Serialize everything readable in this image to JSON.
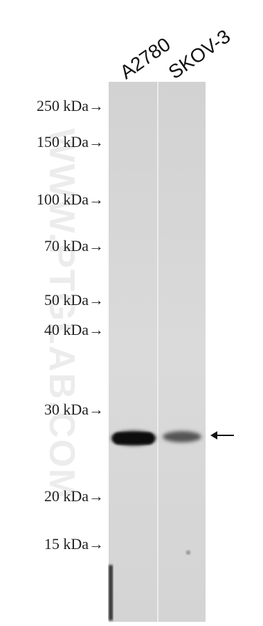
{
  "lanes": [
    "A2780",
    "SKOV-3"
  ],
  "markers": [
    "250 kDa→",
    "150 kDa→",
    "100 kDa→",
    "70 kDa→",
    "50 kDa→",
    "40 kDa→",
    "30 kDa→",
    "20 kDa→",
    "15 kDa→"
  ],
  "watermark": "WWW.PTGLAB.COM"
}
